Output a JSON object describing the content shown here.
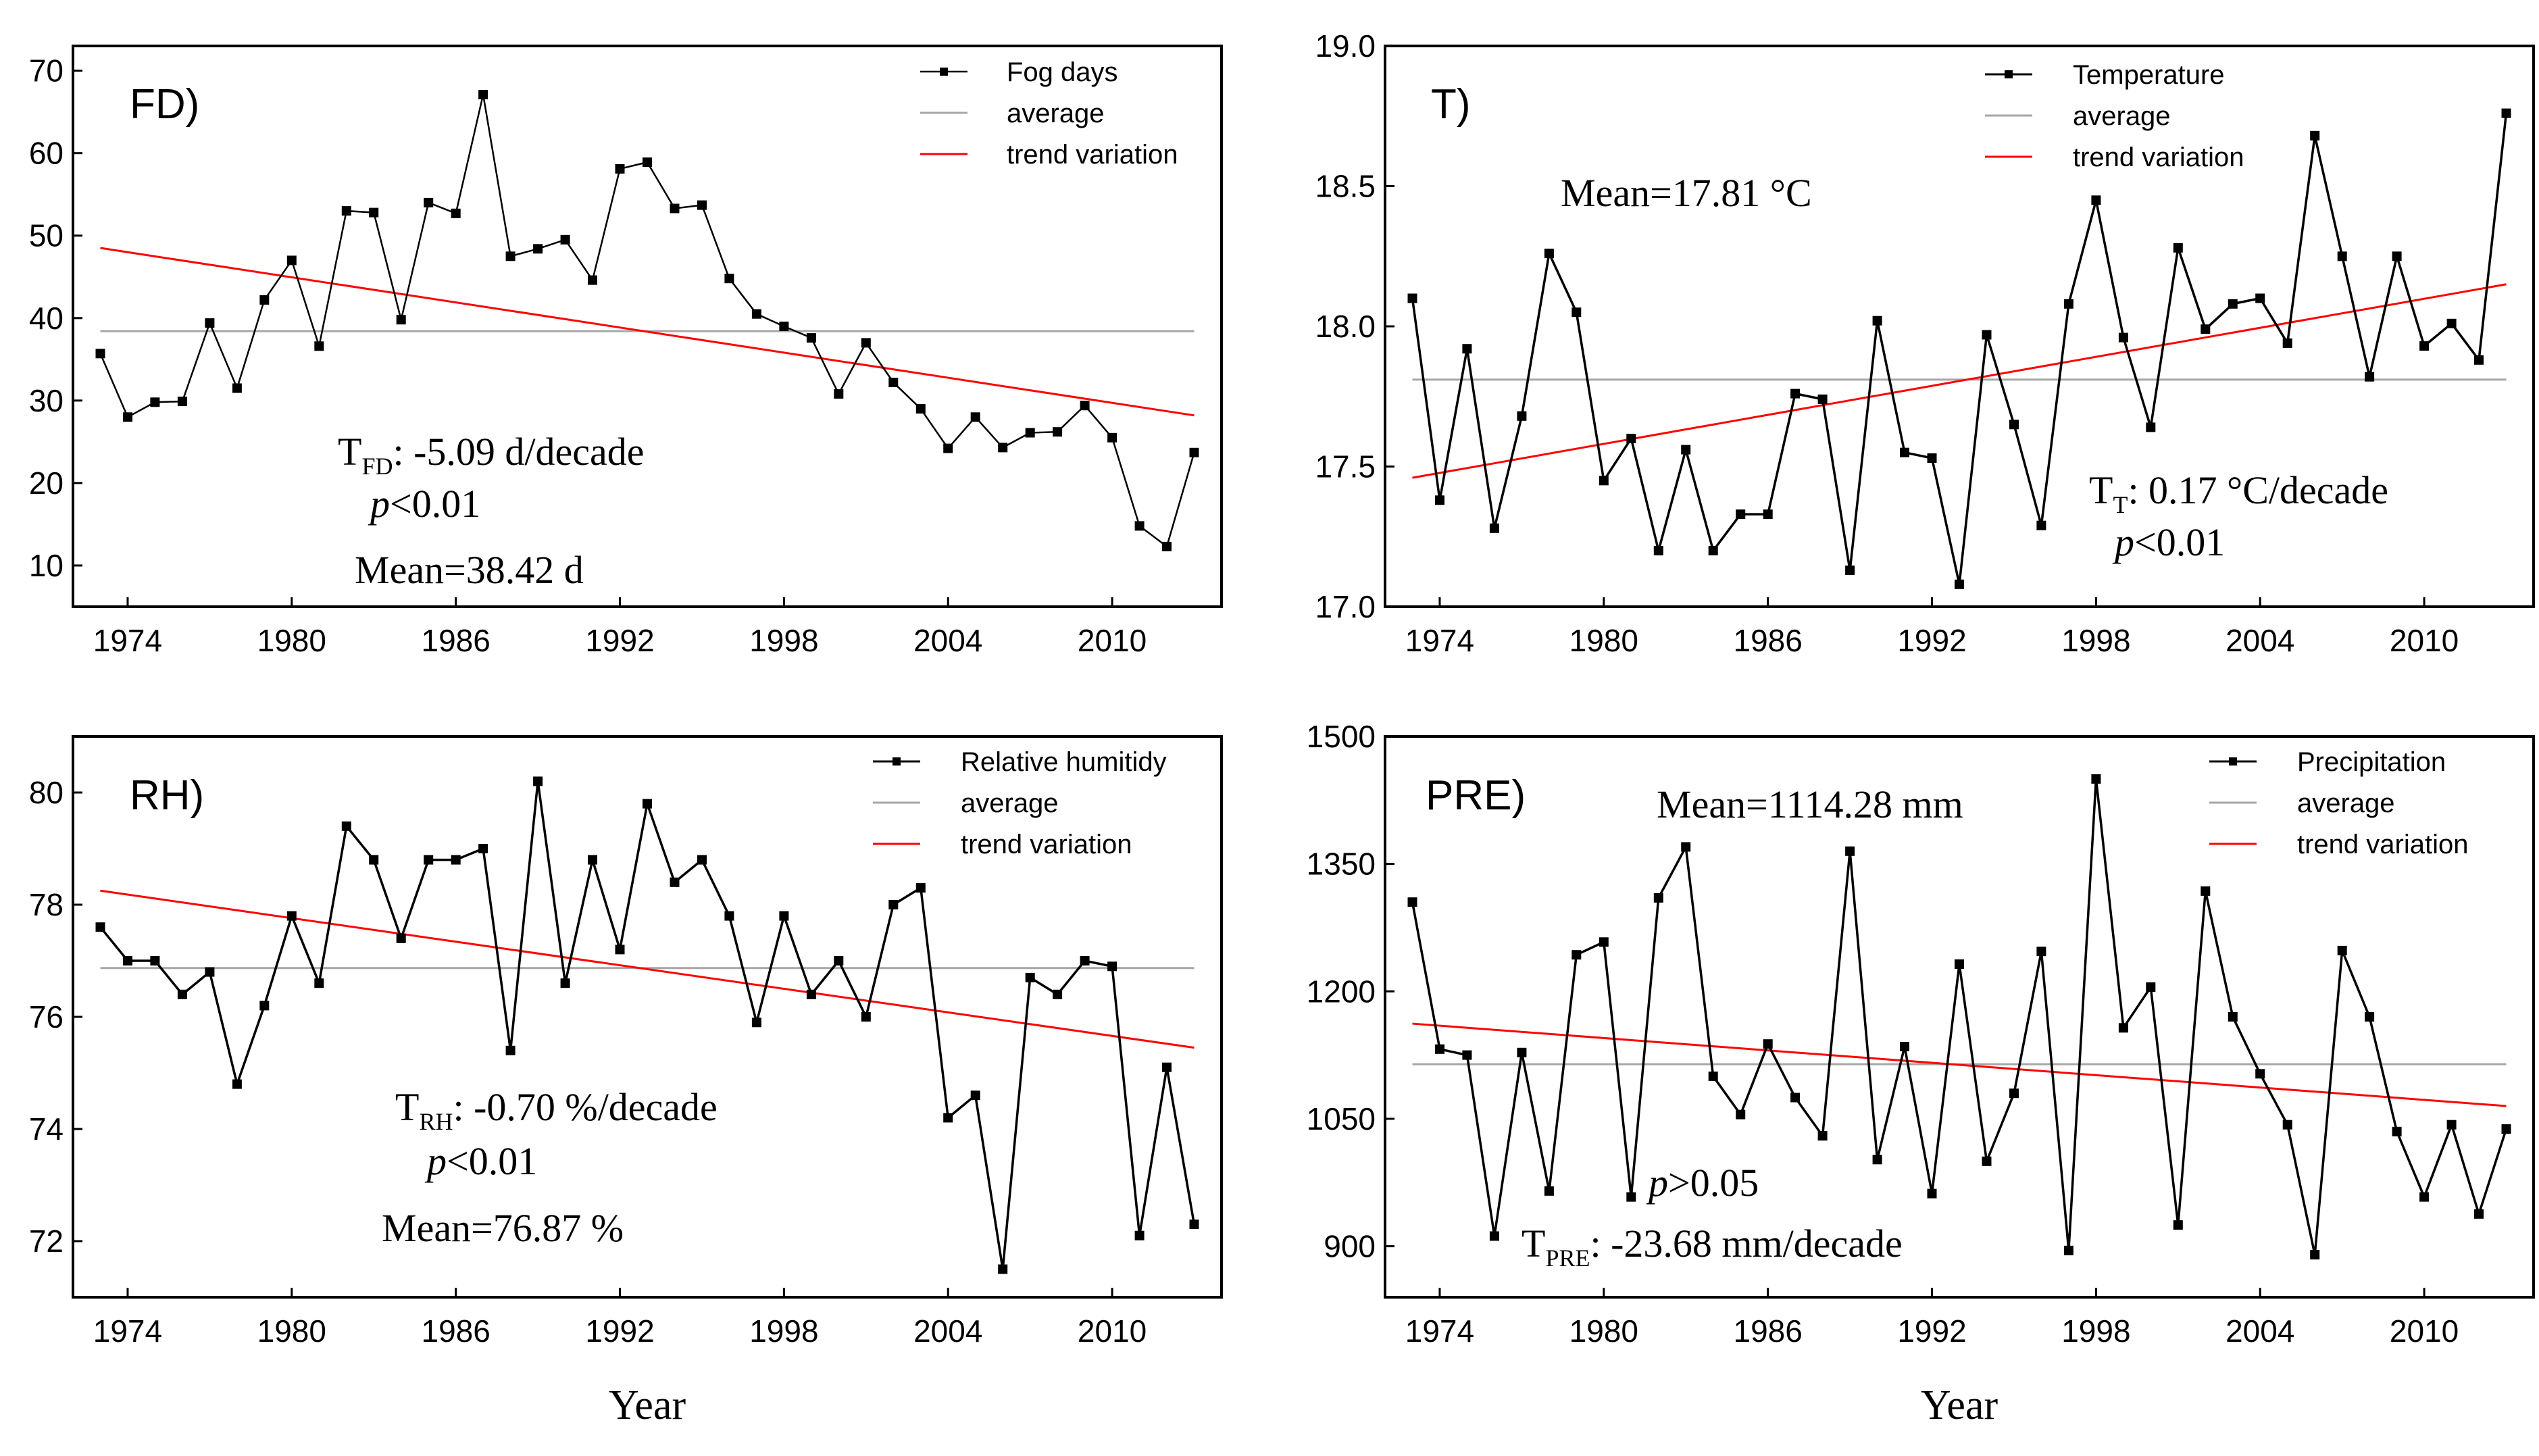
{
  "colors": {
    "series": "#000000",
    "average": "#a6a6a6",
    "trend": "#ff0000"
  },
  "shared": {
    "xlabel": "Year",
    "legend_average": "average",
    "legend_trend": "trend variation"
  },
  "chart_data": [
    {
      "id": "fd",
      "type": "line",
      "panel_label": "FD)",
      "legend_series": "Fog days",
      "legend_position": "top-right",
      "x_ticks": [
        1974,
        1980,
        1986,
        1992,
        1998,
        2004,
        2010
      ],
      "y_ticks": [
        10,
        20,
        30,
        40,
        50,
        60,
        70
      ],
      "xlim": [
        1972,
        2014
      ],
      "ylim": [
        5,
        73
      ],
      "x": [
        1973,
        1974,
        1975,
        1976,
        1977,
        1978,
        1979,
        1980,
        1981,
        1982,
        1983,
        1984,
        1985,
        1986,
        1987,
        1988,
        1989,
        1990,
        1991,
        1992,
        1993,
        1994,
        1995,
        1996,
        1997,
        1998,
        1999,
        2000,
        2001,
        2002,
        2003,
        2004,
        2005,
        2006,
        2007,
        2008,
        2009,
        2010,
        2011,
        2012,
        2013
      ],
      "values": [
        35.7,
        28,
        29.8,
        29.9,
        39.4,
        31.5,
        42.2,
        47,
        36.6,
        53,
        52.8,
        39.8,
        54,
        52.7,
        67.1,
        47.5,
        48.4,
        49.5,
        44.6,
        58.1,
        58.9,
        53.3,
        53.7,
        44.8,
        40.5,
        39,
        37.6,
        30.8,
        37,
        32.2,
        29,
        24.2,
        28,
        24.3,
        26.1,
        26.2,
        29.4,
        25.5,
        14.8,
        12.3,
        23.7
      ],
      "average": 38.42,
      "trend": [
        48.5,
        28.2
      ],
      "annotations": {
        "trend_prefix": "T",
        "trend_sub": "FD",
        "trend_text": ": -5.09 d/decade",
        "p_sym": "p",
        "p_text": "<0.01",
        "mean_text": "Mean=38.42 d"
      }
    },
    {
      "id": "t",
      "type": "line",
      "panel_label": "T)",
      "legend_series": "Temperature",
      "legend_position": "top-right",
      "x_ticks": [
        1974,
        1980,
        1986,
        1992,
        1998,
        2004,
        2010
      ],
      "y_ticks": [
        "17.0",
        "17.5",
        "18.0",
        "18.5",
        "19.0"
      ],
      "xlim": [
        1972,
        2014
      ],
      "ylim": [
        17.0,
        19.0
      ],
      "x": [
        1973,
        1974,
        1975,
        1976,
        1977,
        1978,
        1979,
        1980,
        1981,
        1982,
        1983,
        1984,
        1985,
        1986,
        1987,
        1988,
        1989,
        1990,
        1991,
        1992,
        1993,
        1994,
        1995,
        1996,
        1997,
        1998,
        1999,
        2000,
        2001,
        2002,
        2003,
        2004,
        2005,
        2006,
        2007,
        2008,
        2009,
        2010,
        2011,
        2012,
        2013
      ],
      "values": [
        18.1,
        17.38,
        17.92,
        17.28,
        17.68,
        18.26,
        18.05,
        17.45,
        17.6,
        17.2,
        17.56,
        17.2,
        17.33,
        17.33,
        17.76,
        17.74,
        17.13,
        18.02,
        17.55,
        17.53,
        17.08,
        17.97,
        17.65,
        17.29,
        18.08,
        18.45,
        17.96,
        17.64,
        18.28,
        17.99,
        18.08,
        18.1,
        17.94,
        18.68,
        18.25,
        17.82,
        18.25,
        17.93,
        18.01,
        17.88,
        18.76
      ],
      "average": 17.81,
      "trend": [
        17.46,
        18.15
      ],
      "annotations": {
        "mean_text": "Mean=17.81 °C",
        "trend_prefix": "T",
        "trend_sub": "T",
        "trend_text": ": 0.17 °C/decade",
        "p_sym": "p",
        "p_text": "<0.01"
      }
    },
    {
      "id": "rh",
      "type": "line",
      "panel_label": "RH)",
      "legend_series": "Relative humitidy",
      "legend_position": "top-right",
      "x_ticks": [
        1974,
        1980,
        1986,
        1992,
        1998,
        2004,
        2010
      ],
      "y_ticks": [
        72,
        74,
        76,
        78,
        80
      ],
      "xlim": [
        1972,
        2014
      ],
      "ylim": [
        71,
        81
      ],
      "x": [
        1973,
        1974,
        1975,
        1976,
        1977,
        1978,
        1979,
        1980,
        1981,
        1982,
        1983,
        1984,
        1985,
        1986,
        1987,
        1988,
        1989,
        1990,
        1991,
        1992,
        1993,
        1994,
        1995,
        1996,
        1997,
        1998,
        1999,
        2000,
        2001,
        2002,
        2003,
        2004,
        2005,
        2006,
        2007,
        2008,
        2009,
        2010,
        2011,
        2012,
        2013
      ],
      "values": [
        77.6,
        77,
        77,
        76.4,
        76.8,
        74.8,
        76.2,
        77.8,
        76.6,
        79.4,
        78.8,
        77.4,
        78.8,
        78.8,
        79,
        75.4,
        80.2,
        76.6,
        78.8,
        77.2,
        79.8,
        78.4,
        78.8,
        77.8,
        75.9,
        77.8,
        76.4,
        77,
        76,
        78,
        78.3,
        74.2,
        74.6,
        71.5,
        76.7,
        76.4,
        77,
        76.9,
        72.1,
        75.1,
        72.3
      ],
      "average": 76.87,
      "trend": [
        78.25,
        75.45
      ],
      "annotations": {
        "trend_prefix": "T",
        "trend_sub": "RH",
        "trend_text": ": -0.70 %/decade",
        "p_sym": "p",
        "p_text": "<0.01",
        "mean_text": "Mean=76.87 %"
      }
    },
    {
      "id": "pre",
      "type": "line",
      "panel_label": "PRE)",
      "legend_series": "Precipitation",
      "legend_position": "top-right",
      "x_ticks": [
        1974,
        1980,
        1986,
        1992,
        1998,
        2004,
        2010
      ],
      "y_ticks": [
        900,
        1050,
        1200,
        1350,
        1500
      ],
      "xlim": [
        1972,
        2014
      ],
      "ylim": [
        840,
        1500
      ],
      "x": [
        1973,
        1974,
        1975,
        1976,
        1977,
        1978,
        1979,
        1980,
        1981,
        1982,
        1983,
        1984,
        1985,
        1986,
        1987,
        1988,
        1989,
        1990,
        1991,
        1992,
        1993,
        1994,
        1995,
        1996,
        1997,
        1998,
        1999,
        2000,
        2001,
        2002,
        2003,
        2004,
        2005,
        2006,
        2007,
        2008,
        2009,
        2010,
        2011,
        2012,
        2013
      ],
      "values": [
        1305,
        1132,
        1125,
        912,
        1128,
        965,
        1243,
        1258,
        958,
        1310,
        1370,
        1100,
        1055,
        1138,
        1075,
        1030,
        1365,
        1002,
        1135,
        962,
        1232,
        1000,
        1080,
        1247,
        895,
        1450,
        1157,
        1205,
        925,
        1318,
        1170,
        1103,
        1043,
        890,
        1248,
        1170,
        1035,
        958,
        1043,
        938,
        1038
      ],
      "average": 1114.28,
      "trend": [
        1162,
        1065
      ],
      "annotations": {
        "mean_text": "Mean=1114.28 mm",
        "p_sym": "p",
        "p_text": ">0.05",
        "trend_prefix": "T",
        "trend_sub": "PRE",
        "trend_text": ": -23.68 mm/decade"
      }
    }
  ]
}
